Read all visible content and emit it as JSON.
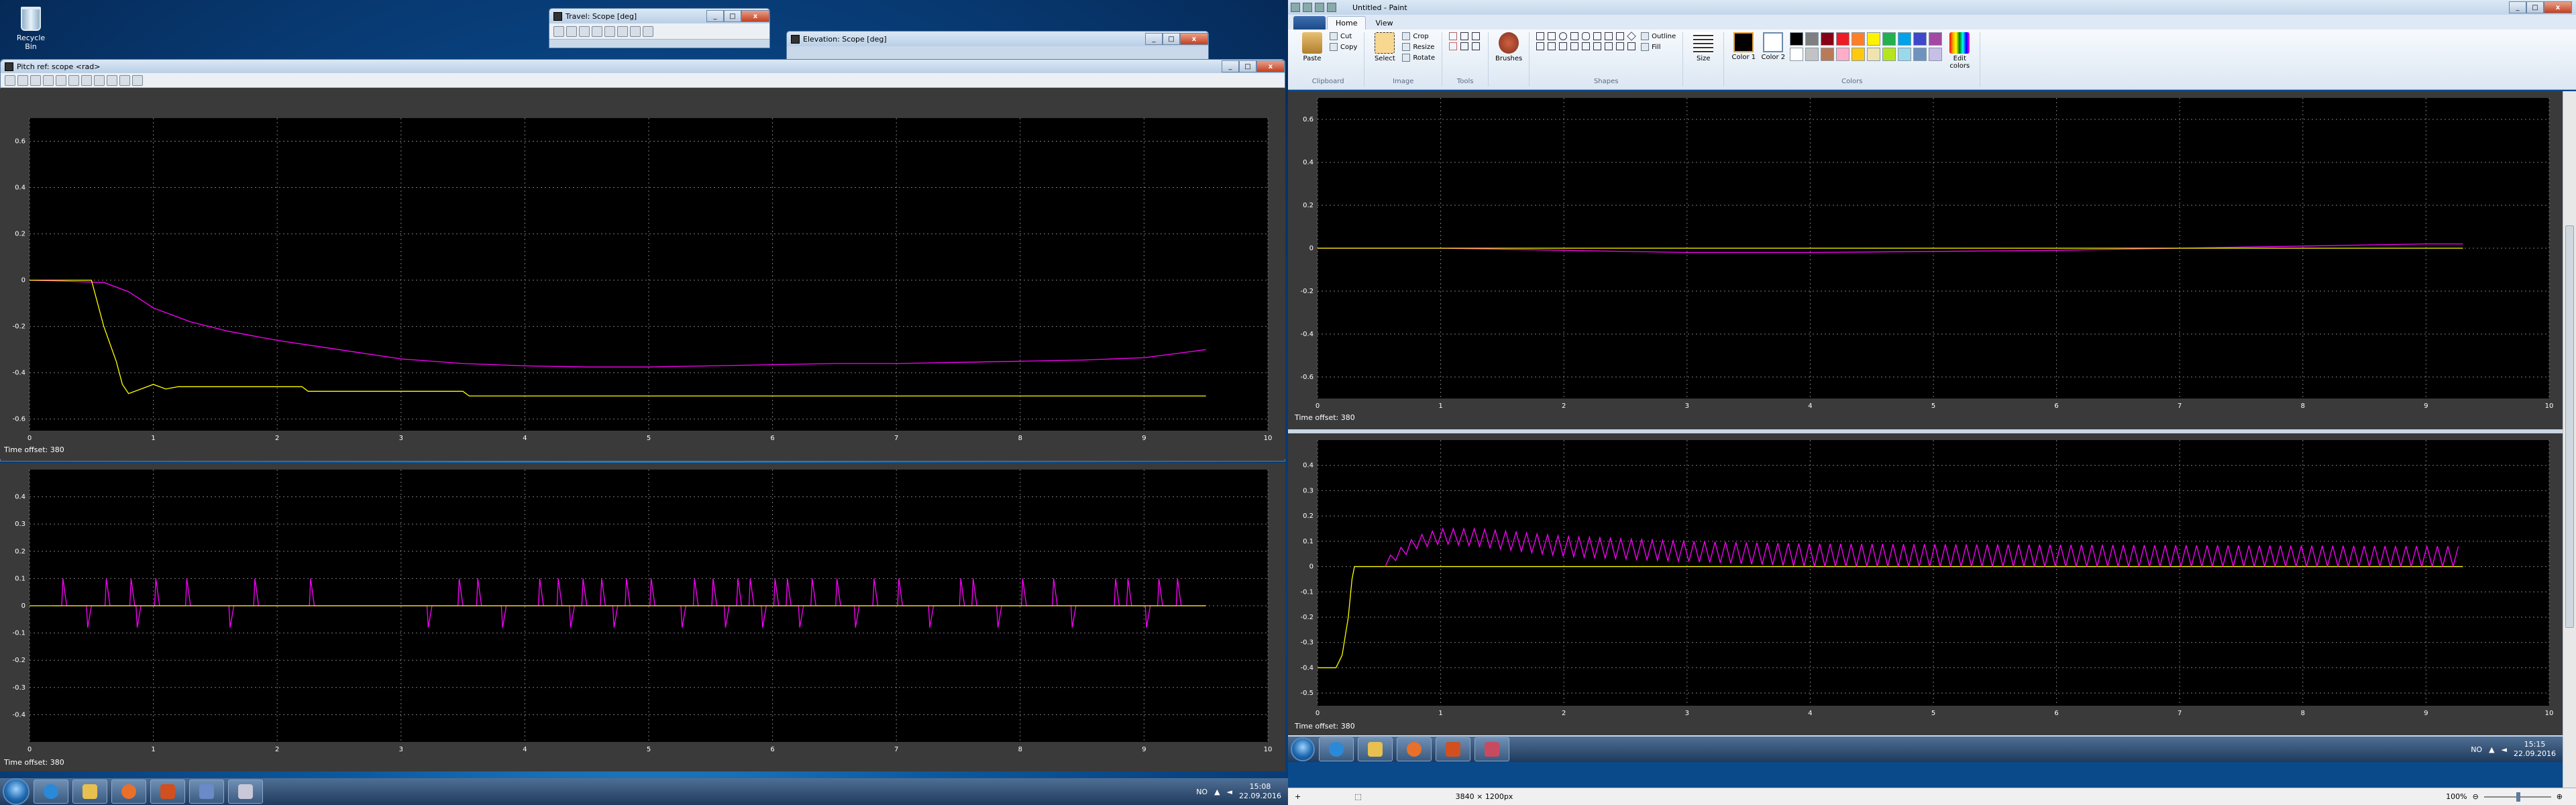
{
  "desktop": {
    "recycle_bin_label": "Recycle Bin"
  },
  "windows": {
    "travel": {
      "title": "Travel: Scope [deg]"
    },
    "elevation": {
      "title": "Elevation: Scope [deg]"
    },
    "pitch": {
      "title": "Pitch ref: scope <rad>"
    }
  },
  "left_taskbar": {
    "lang": "NO",
    "time": "15:08",
    "date": "22.09.2016"
  },
  "paint": {
    "title": "Untitled - Paint",
    "tabs": [
      "Home",
      "View"
    ],
    "groups": {
      "clipboard": {
        "label": "Clipboard",
        "paste": "Paste",
        "cut": "Cut",
        "copy": "Copy"
      },
      "image": {
        "label": "Image",
        "select": "Select",
        "crop": "Crop",
        "resize": "Resize",
        "rotate": "Rotate"
      },
      "tools": {
        "label": "Tools"
      },
      "brushes": {
        "label": "Brushes"
      },
      "shapes": {
        "label": "Shapes",
        "outline": "Outline",
        "fill": "Fill"
      },
      "size": {
        "label": "Size"
      },
      "colors": {
        "label": "Colors",
        "color1": "Color 1",
        "color2": "Color 2",
        "edit": "Edit colors"
      }
    },
    "status": {
      "dimensions": "3840 × 1200px",
      "zoom": "100%"
    },
    "taskbar": {
      "lang": "NO",
      "time": "15:15",
      "date": "22.09.2016"
    }
  },
  "colors": {
    "plot_bg": "#000000",
    "pane_bg": "#3a3a3a",
    "grid": "#7a7a7a",
    "series_yellow": "#ffff00",
    "series_magenta": "#ff00ff"
  },
  "palette": [
    "#000000",
    "#7f7f7f",
    "#880015",
    "#ed1c24",
    "#ff7f27",
    "#fff200",
    "#22b14c",
    "#00a2e8",
    "#3f48cc",
    "#a349a4",
    "#ffffff",
    "#c3c3c3",
    "#b97a57",
    "#ffaec9",
    "#ffc90e",
    "#efe4b0",
    "#b5e61d",
    "#99d9ea",
    "#7092be",
    "#c8bfe7"
  ],
  "scopes": [
    {
      "id": "pitch-ref-top",
      "time_offset_label": "Time offset:",
      "time_offset_value": "380",
      "chart_data": {
        "type": "line",
        "x_ticks": [
          "0",
          "1",
          "2",
          "3",
          "4",
          "5",
          "6",
          "7",
          "8",
          "9",
          "10"
        ],
        "y_ticks": [
          "0.6",
          "0.4",
          "0.2",
          "0",
          "-0.2",
          "-0.4",
          "-0.6"
        ],
        "xlim": [
          0,
          10
        ],
        "ylim": [
          -0.65,
          0.7
        ],
        "series": [
          {
            "color": "magenta",
            "x": [
              0,
              0.6,
              0.8,
              1.0,
              1.3,
              1.6,
              2.0,
              2.5,
              3.0,
              3.5,
              4.0,
              4.5,
              5.0,
              5.5,
              6.0,
              6.5,
              7.0,
              7.5,
              8.0,
              8.5,
              9.0,
              9.5
            ],
            "y": [
              0,
              -0.01,
              -0.05,
              -0.12,
              -0.18,
              -0.22,
              -0.26,
              -0.3,
              -0.34,
              -0.36,
              -0.37,
              -0.375,
              -0.375,
              -0.37,
              -0.365,
              -0.36,
              -0.36,
              -0.355,
              -0.35,
              -0.345,
              -0.335,
              -0.3
            ]
          },
          {
            "color": "yellow",
            "x": [
              0,
              0.5,
              0.55,
              0.6,
              0.7,
              0.75,
              0.8,
              0.9,
              1.0,
              1.1,
              1.2,
              1.4,
              1.7,
              2.2,
              2.25,
              3.0,
              3.5,
              3.55,
              4.0,
              5.0,
              6.0,
              7.0,
              8.0,
              9.0,
              9.5
            ],
            "y": [
              0,
              0,
              -0.1,
              -0.2,
              -0.35,
              -0.45,
              -0.49,
              -0.47,
              -0.45,
              -0.47,
              -0.46,
              -0.46,
              -0.46,
              -0.46,
              -0.48,
              -0.48,
              -0.48,
              -0.5,
              -0.5,
              -0.5,
              -0.5,
              -0.5,
              -0.5,
              -0.5,
              -0.5
            ]
          }
        ]
      }
    },
    {
      "id": "left-bottom",
      "time_offset_label": "Time offset:",
      "time_offset_value": "380",
      "chart_data": {
        "type": "line",
        "x_ticks": [
          "0",
          "1",
          "2",
          "3",
          "4",
          "5",
          "6",
          "7",
          "8",
          "9",
          "10"
        ],
        "y_ticks": [
          "0.4",
          "0.3",
          "0.2",
          "0.1",
          "0",
          "-0.1",
          "-0.2",
          "-0.3",
          "-0.4"
        ],
        "xlim": [
          0,
          10
        ],
        "ylim": [
          -0.5,
          0.5
        ],
        "series": [
          {
            "color": "magenta",
            "spike_times": [
              0.27,
              0.47,
              0.62,
              0.82,
              0.87,
              1.02,
              1.27,
              1.62,
              1.82,
              2.27,
              3.22,
              3.47,
              3.62,
              3.82,
              4.12,
              4.27,
              4.37,
              4.47,
              4.62,
              4.72,
              4.82,
              5.02,
              5.27,
              5.37,
              5.52,
              5.62,
              5.72,
              5.82,
              5.92,
              6.02,
              6.12,
              6.22,
              6.32,
              6.52,
              6.67,
              6.82,
              7.02,
              7.27,
              7.52,
              7.62,
              7.82,
              8.02,
              8.27,
              8.42,
              8.77,
              8.87,
              9.02,
              9.12,
              9.27
            ],
            "spike_up": 0.1,
            "spike_down": -0.08
          },
          {
            "color": "yellow",
            "x": [
              0,
              9.5
            ],
            "y": [
              0,
              0
            ]
          }
        ]
      }
    },
    {
      "id": "right-top",
      "time_offset_label": "Time offset:",
      "time_offset_value": "380",
      "chart_data": {
        "type": "line",
        "x_ticks": [
          "0",
          "1",
          "2",
          "3",
          "4",
          "5",
          "6",
          "7",
          "8",
          "9",
          "10"
        ],
        "y_ticks": [
          "0.6",
          "0.4",
          "0.2",
          "0",
          "-0.2",
          "-0.4",
          "-0.6"
        ],
        "xlim": [
          0,
          10
        ],
        "ylim": [
          -0.7,
          0.7
        ],
        "series": [
          {
            "color": "magenta",
            "x": [
              0,
              1,
              2,
              3,
              4,
              5,
              6,
              7,
              8,
              9,
              9.3
            ],
            "y": [
              0,
              0,
              -0.01,
              -0.02,
              -0.02,
              -0.015,
              -0.01,
              0,
              0.01,
              0.02,
              0.02
            ]
          },
          {
            "color": "yellow",
            "x": [
              0,
              9.3
            ],
            "y": [
              0,
              0
            ]
          }
        ]
      }
    },
    {
      "id": "right-bottom",
      "time_offset_label": "Time offset:",
      "time_offset_value": "380",
      "chart_data": {
        "type": "line",
        "x_ticks": [
          "0",
          "1",
          "2",
          "3",
          "4",
          "5",
          "6",
          "7",
          "8",
          "9",
          "10"
        ],
        "y_ticks": [
          "0.4",
          "0.3",
          "0.2",
          "0.1",
          "0",
          "-0.1",
          "-0.2",
          "-0.3",
          "-0.4",
          "-0.5"
        ],
        "xlim": [
          0,
          10
        ],
        "ylim": [
          -0.55,
          0.5
        ],
        "series": [
          {
            "color": "yellow",
            "x": [
              0,
              0.15,
              0.2,
              0.25,
              0.28,
              0.3,
              0.35,
              9.3
            ],
            "y": [
              -0.4,
              -0.4,
              -0.35,
              -0.2,
              -0.05,
              0,
              0,
              0
            ]
          },
          {
            "color": "magenta",
            "oscillation": {
              "start": 0.55,
              "end": 9.3,
              "period": 0.085,
              "envelope_x": [
                0.55,
                0.8,
                1.0,
                1.3,
                2.0,
                3.0,
                4.0,
                9.3
              ],
              "envelope_top": [
                0.03,
                0.12,
                0.15,
                0.15,
                0.12,
                0.1,
                0.09,
                0.08
              ],
              "envelope_bottom": [
                0,
                0.07,
                0.09,
                0.08,
                0.04,
                0.02,
                0,
                0
              ]
            }
          }
        ]
      }
    }
  ]
}
